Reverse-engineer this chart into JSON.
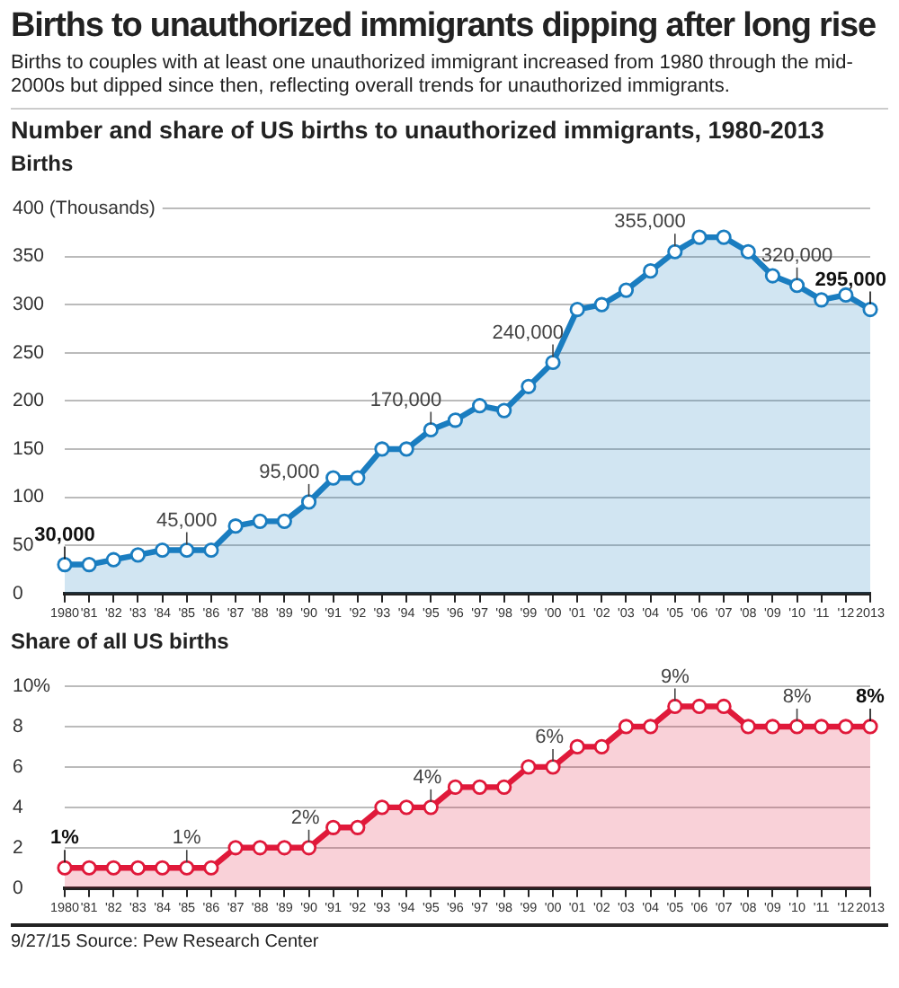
{
  "chart_data": [
    {
      "type": "area",
      "title": "Births to unauthorized immigrants dipping after long rise",
      "subtitle": "Births to couples with at least one unauthorized immigrant increased from 1980 through the mid-2000s but dipped since then, reflecting overall trends for unauthorized immigrants.",
      "annotations": [
        "Number and share of US births to unauthorized immigrants, 1980-2013",
        {
          "text": "30,000",
          "x": "1980",
          "y": 30
        },
        {
          "text": "45,000",
          "x": "'85",
          "y": 45
        },
        {
          "text": "95,000",
          "x": "'90",
          "y": 95
        },
        {
          "text": "170,000",
          "x": "'95",
          "y": 170
        },
        {
          "text": "240,000",
          "x": "'00",
          "y": 240
        },
        {
          "text": "355,000",
          "x": "'05",
          "y": 355
        },
        {
          "text": "320,000",
          "x": "'10",
          "y": 320
        },
        {
          "text": "295,000",
          "x": "2013",
          "y": 295
        }
      ],
      "ylabel": "Births",
      "categories": [
        "1980",
        "'81",
        "'82",
        "'83",
        "'84",
        "'85",
        "'86",
        "'87",
        "'88",
        "'89",
        "'90",
        "'91",
        "'92",
        "'93",
        "'94",
        "'95",
        "'96",
        "'97",
        "'98",
        "'99",
        "'00",
        "'01",
        "'02",
        "'03",
        "'04",
        "'05",
        "'06",
        "'07",
        "'08",
        "'09",
        "'10",
        "'11",
        "'12",
        "2013"
      ],
      "series": [
        {
          "color": "#1a7dc0",
          "values": [
            30,
            30,
            35,
            40,
            45,
            45,
            45,
            70,
            75,
            75,
            95,
            120,
            120,
            150,
            150,
            170,
            180,
            195,
            190,
            215,
            240,
            295,
            300,
            315,
            335,
            355,
            370,
            370,
            355,
            330,
            320,
            305,
            310,
            295
          ]
        }
      ],
      "ylim": [
        0,
        400
      ],
      "yticks": [
        0,
        50,
        100,
        150,
        200,
        250,
        300,
        350,
        {
          "value": 400,
          "label": "400 (Thousands)"
        }
      ],
      "grid": "y",
      "marker": "circle",
      "line_style": "solid",
      "legend": false
    },
    {
      "type": "area",
      "ylabel": "Share of all US births",
      "annotations": [
        "9/27/15  Source: Pew Research Center"
      ],
      "categories": [
        "1980",
        "'81",
        "'82",
        "'83",
        "'84",
        "'85",
        "'86",
        "'87",
        "'88",
        "'89",
        "'90",
        "'91",
        "'92",
        "'93",
        "'94",
        "'95",
        "'96",
        "'97",
        "'98",
        "'99",
        "'00",
        "'01",
        "'02",
        "'03",
        "'04",
        "'05",
        "'06",
        "'07",
        "'08",
        "'09",
        "'10",
        "'11",
        "'12",
        "2013"
      ],
      "series": [
        {
          "color": "#e0193a",
          "values": [
            1,
            1,
            1,
            1,
            1,
            1,
            1,
            2,
            2,
            2,
            2,
            3,
            3,
            4,
            4,
            4,
            5,
            5,
            5,
            6,
            6,
            7,
            7,
            8,
            8,
            9,
            9,
            9,
            8,
            8,
            8,
            8,
            8,
            8
          ],
          "value_labels": [
            "1%",
            null,
            null,
            null,
            null,
            "1%",
            null,
            null,
            null,
            null,
            "2%",
            null,
            null,
            null,
            null,
            "4%",
            null,
            null,
            null,
            null,
            "6%",
            null,
            null,
            null,
            null,
            "9%",
            null,
            null,
            null,
            null,
            "8%",
            null,
            null,
            "8%"
          ]
        }
      ],
      "ylim": [
        0,
        10
      ],
      "yticks": [
        0,
        2,
        4,
        6,
        8,
        {
          "value": 10,
          "label": "10%"
        }
      ],
      "grid": "y",
      "marker": "circle",
      "line_style": "solid",
      "legend": false
    }
  ]
}
